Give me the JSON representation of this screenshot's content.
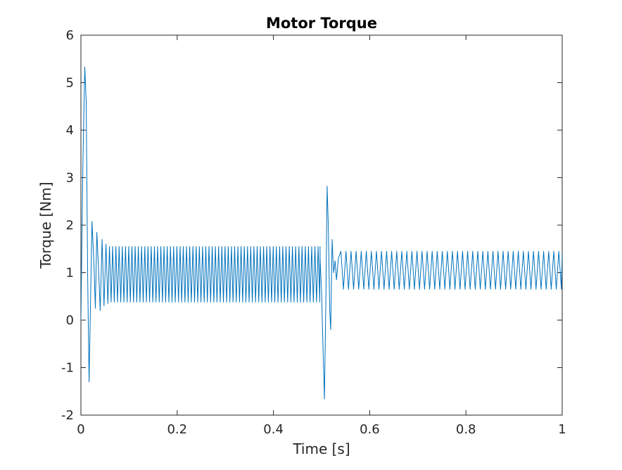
{
  "chart_data": {
    "type": "line",
    "title": "Motor Torque",
    "xlabel": "Time [s]",
    "ylabel": "Torque [Nm]",
    "xlim": [
      0,
      1
    ],
    "ylim": [
      -2,
      6
    ],
    "xticks": [
      0,
      0.2,
      0.4,
      0.6,
      0.8,
      1
    ],
    "xtick_labels": [
      "0",
      "0.2",
      "0.4",
      "0.6",
      "0.8",
      "1"
    ],
    "yticks": [
      -2,
      -1,
      0,
      1,
      2,
      3,
      4,
      5,
      6
    ],
    "ytick_labels": [
      "-2",
      "-1",
      "0",
      "1",
      "2",
      "3",
      "4",
      "5",
      "6"
    ],
    "grid": false,
    "line_color": "#0072bd",
    "series": [
      {
        "points": [
          [
            0.0,
            0.0
          ],
          [
            0.004,
            3.2
          ],
          [
            0.008,
            5.33
          ],
          [
            0.011,
            4.6
          ],
          [
            0.014,
            0.9
          ],
          [
            0.017,
            -1.3
          ],
          [
            0.02,
            0.4
          ],
          [
            0.023,
            2.08
          ],
          [
            0.027,
            1.2
          ],
          [
            0.03,
            0.25
          ],
          [
            0.033,
            1.85
          ],
          [
            0.037,
            1.0
          ],
          [
            0.04,
            0.2
          ],
          [
            0.044,
            1.7
          ],
          [
            0.048,
            0.3
          ],
          [
            0.052,
            1.6
          ],
          [
            0.056,
            0.35
          ]
        ],
        "oscillations": [
          {
            "t_start": 0.056,
            "t_end": 0.497,
            "period": 0.00667,
            "low": 0.38,
            "high": 1.55
          },
          {
            "t_start": 0.535,
            "t_end": 1.0,
            "period": 0.01053,
            "low": 0.65,
            "high": 1.45
          }
        ],
        "transient": [
          [
            0.497,
            1.3
          ],
          [
            0.5,
            0.6
          ],
          [
            0.503,
            -0.6
          ],
          [
            0.506,
            -1.66
          ],
          [
            0.509,
            0.5
          ],
          [
            0.5115,
            2.82
          ],
          [
            0.514,
            2.0
          ],
          [
            0.517,
            0.2
          ],
          [
            0.519,
            -0.2
          ],
          [
            0.522,
            1.7
          ],
          [
            0.525,
            1.0
          ],
          [
            0.528,
            1.25
          ],
          [
            0.531,
            0.85
          ],
          [
            0.535,
            1.3
          ]
        ]
      }
    ]
  }
}
